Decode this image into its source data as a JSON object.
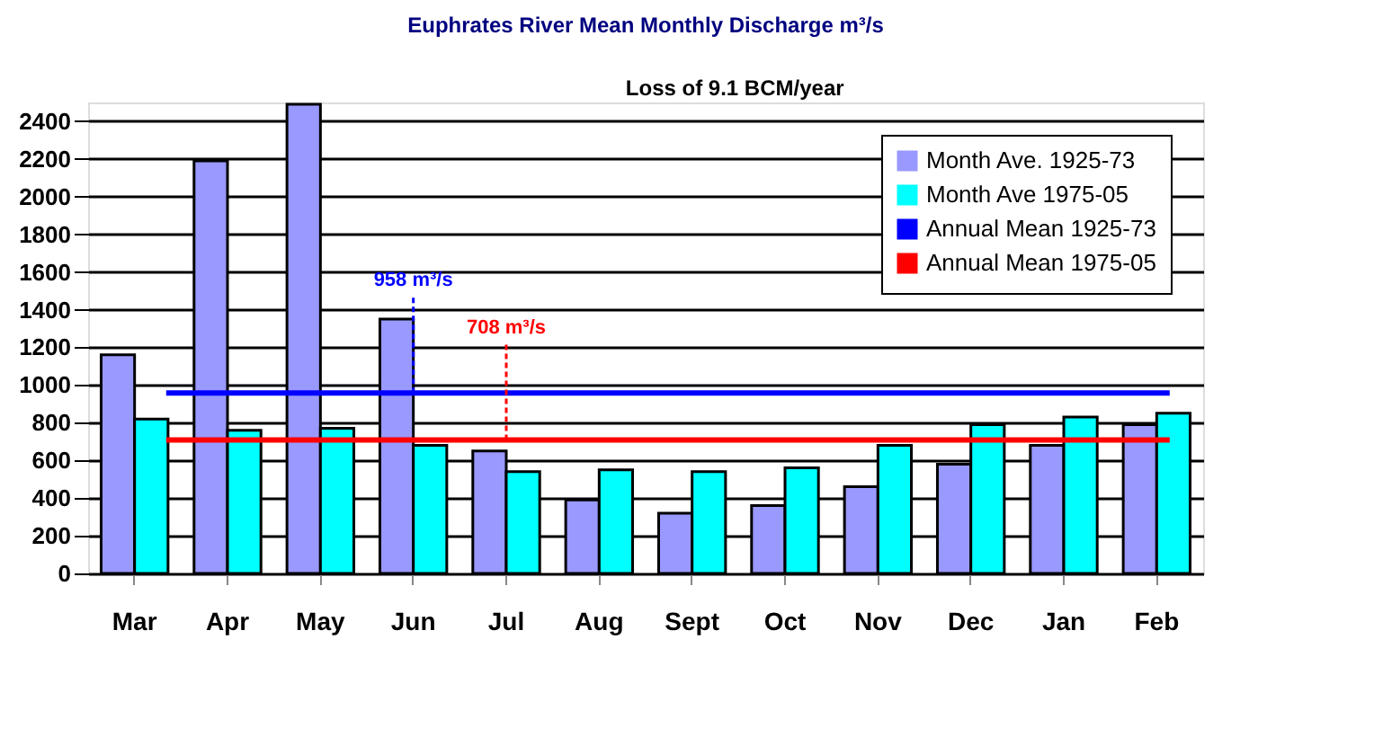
{
  "chart_data": {
    "type": "bar",
    "title": "Euphrates River Mean Monthly Discharge m³/s",
    "categories": [
      "Mar",
      "Apr",
      "May",
      "Jun",
      "Jul",
      "Aug",
      "Sept",
      "Oct",
      "Nov",
      "Dec",
      "Jan",
      "Feb"
    ],
    "series": [
      {
        "name": "Month Ave. 1925-73",
        "color": "#9999ff",
        "values": [
          1160,
          2190,
          2490,
          1350,
          650,
          390,
          320,
          360,
          460,
          580,
          680,
          790
        ]
      },
      {
        "name": "Month Ave 1975-05",
        "color": "#00ffff",
        "values": [
          820,
          760,
          770,
          680,
          540,
          550,
          540,
          560,
          680,
          790,
          830,
          850
        ]
      }
    ],
    "ref_lines": [
      {
        "axis": "y",
        "value": 958,
        "label": "Annual Mean 1925-73",
        "color": "#0000ff"
      },
      {
        "axis": "y",
        "value": 708,
        "label": "Annual Mean 1975-05",
        "color": "#ff0000"
      }
    ],
    "annotations": [
      "Loss of 9.1 BCM/year",
      {
        "text": "958 m³/s",
        "x": "Jun",
        "y": 958
      },
      {
        "text": "708 m³/s",
        "x": "Jul",
        "y": 708
      }
    ],
    "ylim": [
      0,
      2500
    ],
    "yticks": [
      0,
      200,
      400,
      600,
      800,
      1000,
      1200,
      1400,
      1600,
      1800,
      2000,
      2200,
      2400
    ],
    "grid": "y",
    "legend": "top right"
  }
}
